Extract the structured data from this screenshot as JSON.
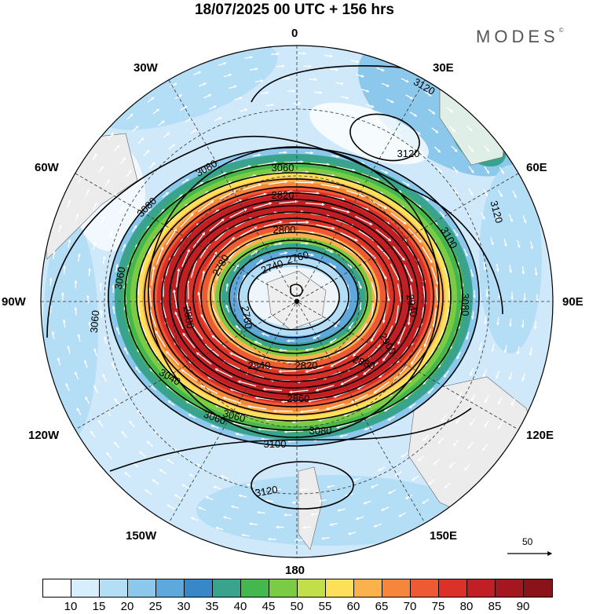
{
  "title": "18/07/2025  00 UTC  + 156 hrs",
  "brand": "MODES",
  "brand_mark": "©",
  "longitude_labels": {
    "n0": "0",
    "n30e": "30E",
    "n60e": "60E",
    "n90e": "90E",
    "n120e": "120E",
    "n150e": "150E",
    "n180": "180",
    "n150w": "150W",
    "n120w": "120W",
    "n90w": "90W",
    "n60w": "60W",
    "n30w": "30W"
  },
  "contour_labels": [
    "3120",
    "3120",
    "3120",
    "3100",
    "3080",
    "3080",
    "3080",
    "3060",
    "3060",
    "3060",
    "3040",
    "3060",
    "3080",
    "3100",
    "3120",
    "2940",
    "2900",
    "2880",
    "2860",
    "2840",
    "2820",
    "2820",
    "2800",
    "2780",
    "2760",
    "2740",
    "2760",
    "2880",
    "3060"
  ],
  "reference_vector": "50",
  "colorbar": {
    "colors": [
      "#ffffff",
      "#d7eefc",
      "#b4ddf6",
      "#8cc7ec",
      "#5fa8dc",
      "#3a87c8",
      "#3aa38e",
      "#45b84d",
      "#7ccb45",
      "#c2df4a",
      "#fde05a",
      "#fbb24c",
      "#f7863d",
      "#ee5a33",
      "#db3128",
      "#c11f24",
      "#a5171f",
      "#8b1219"
    ],
    "tick_labels": [
      "10",
      "15",
      "20",
      "25",
      "30",
      "35",
      "40",
      "45",
      "50",
      "55",
      "60",
      "65",
      "70",
      "75",
      "80",
      "85",
      "90"
    ]
  }
}
